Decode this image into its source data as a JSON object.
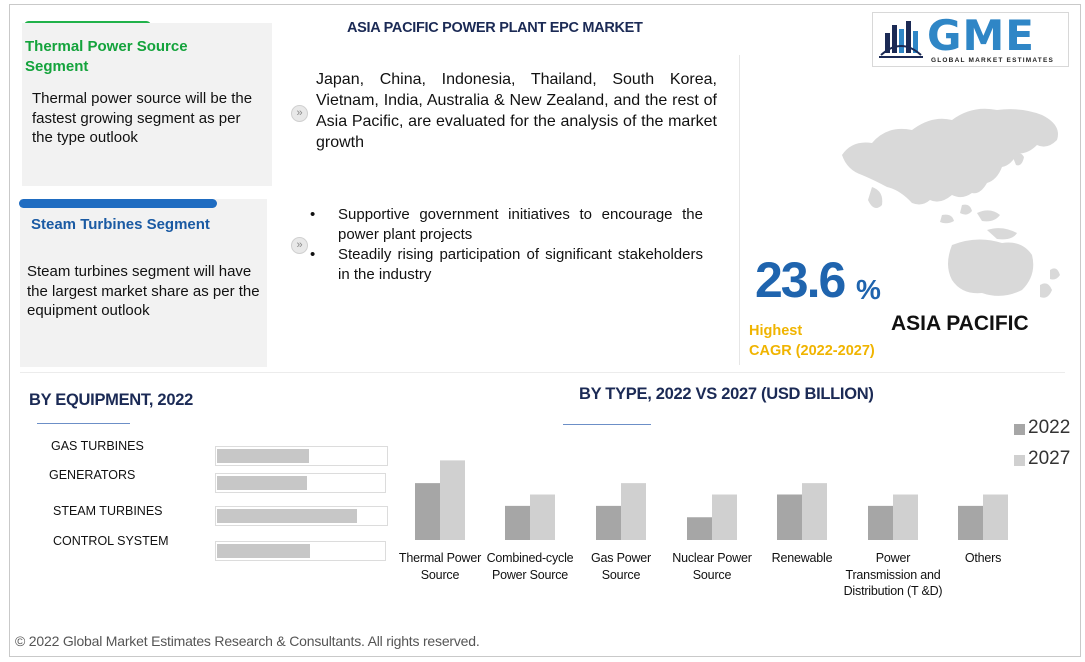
{
  "header": {
    "title": "ASIA PACIFIC POWER PLANT EPC MARKET"
  },
  "logo": {
    "text": "GME",
    "subtitle": "GLOBAL MARKET ESTIMATES"
  },
  "cards": [
    {
      "title": "Thermal Power Source Segment",
      "text": "Thermal power source will be the fastest growing segment as per the type outlook"
    },
    {
      "title": "Steam Turbines Segment",
      "text": "Steam turbines segment will have the largest  market share as per the equipment outlook"
    }
  ],
  "intro": {
    "text": "Japan, China, Indonesia, Thailand, South Korea, Vietnam, India, Australia & New Zealand, and the rest of Asia Pacific, are evaluated for the analysis of the market growth"
  },
  "drivers": [
    "Supportive government initiatives to encourage the power plant projects",
    "Steadily rising participation of significant stakeholders in the industry"
  ],
  "cagr": {
    "value": "23.6",
    "unit": "%",
    "label_line1": "Highest",
    "label_line2": "CAGR (2022-2027)",
    "region": "ASIA PACIFIC"
  },
  "colors": {
    "green": "#21b24b",
    "blue": "#1f6cc1",
    "accent": "#1f64ae",
    "gold": "#f0b400",
    "bar2022": "#a6a6a6",
    "bar2027": "#d0d0d0"
  },
  "footer": {
    "text": "© 2022 Global Market Estimates Research & Consultants. All rights reserved."
  },
  "chart_data": [
    {
      "type": "bar",
      "title": "BY EQUIPMENT, 2022",
      "orientation": "horizontal",
      "categories": [
        "GAS TURBINES",
        "GENERATORS",
        "STEAM TURBINES",
        "CONTROL SYSTEM"
      ],
      "values": [
        0.54,
        0.53,
        0.82,
        0.55
      ],
      "xlim": [
        0,
        1
      ]
    },
    {
      "type": "bar",
      "title": "BY TYPE, 2022 VS 2027 (USD BILLION)",
      "categories": [
        "Thermal Power Source",
        "Combined-cycle Power Source",
        "Gas Power Source",
        "Nuclear Power Source",
        "Renewable",
        "Power Transmission and Distribution (T &D)",
        "Others"
      ],
      "series": [
        {
          "name": "2022",
          "values": [
            2.5,
            1.5,
            1.5,
            1.0,
            2.0,
            1.5,
            1.5
          ]
        },
        {
          "name": "2027",
          "values": [
            3.5,
            2.0,
            2.5,
            2.0,
            2.5,
            2.0,
            2.0
          ]
        }
      ],
      "ylim": [
        0,
        4
      ],
      "legend": "top-right",
      "grid": false
    }
  ]
}
